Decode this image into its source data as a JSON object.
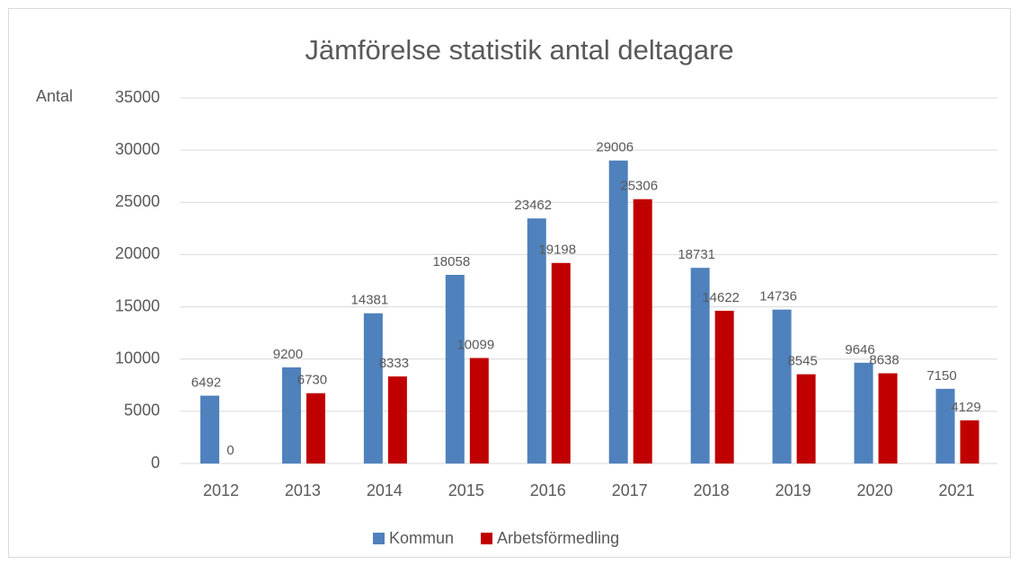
{
  "chart_data": {
    "type": "bar",
    "title": "Jämförelse statistik antal deltagare",
    "y_label": "Antal",
    "categories": [
      "2012",
      "2013",
      "2014",
      "2015",
      "2016",
      "2017",
      "2018",
      "2019",
      "2020",
      "2021"
    ],
    "series": [
      {
        "name": "Kommun",
        "color": "#4f81bd",
        "values": [
          6492,
          9200,
          14381,
          18058,
          23462,
          29006,
          18731,
          14736,
          9646,
          7150
        ]
      },
      {
        "name": "Arbetsförmedling",
        "color": "#c00000",
        "values": [
          0,
          6730,
          8333,
          10099,
          19198,
          25306,
          14622,
          8545,
          8638,
          4129
        ]
      }
    ],
    "ylim": [
      0,
      35000
    ],
    "yticks": [
      0,
      5000,
      10000,
      15000,
      20000,
      25000,
      30000,
      35000
    ],
    "grid": true,
    "legend": "bottom"
  }
}
